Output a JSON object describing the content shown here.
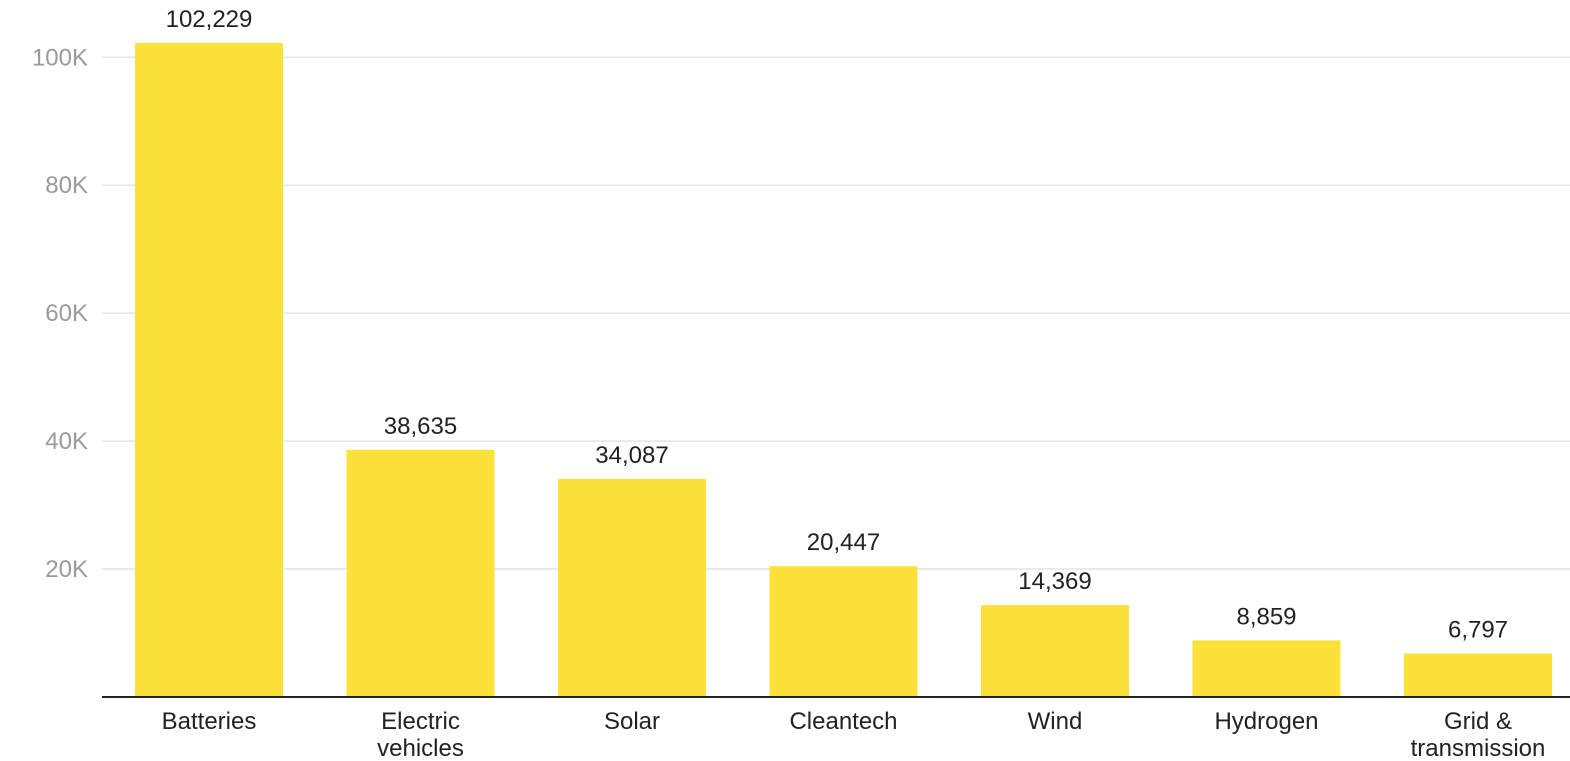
{
  "chart_data": {
    "type": "bar",
    "categories": [
      [
        "Batteries"
      ],
      [
        "Electric",
        "vehicles"
      ],
      [
        "Solar"
      ],
      [
        "Cleantech"
      ],
      [
        "Wind"
      ],
      [
        "Hydrogen"
      ],
      [
        "Grid &",
        "transmission"
      ]
    ],
    "values": [
      102229,
      38635,
      34087,
      20447,
      14369,
      8859,
      6797
    ],
    "value_labels": [
      "102,229",
      "38,635",
      "34,087",
      "20,447",
      "14,369",
      "8,859",
      "6,797"
    ],
    "yticks": [
      {
        "value": 20000,
        "label": "20K"
      },
      {
        "value": 40000,
        "label": "40K"
      },
      {
        "value": 60000,
        "label": "60K"
      },
      {
        "value": 80000,
        "label": "80K"
      },
      {
        "value": 100000,
        "label": "100K"
      }
    ],
    "ylim": [
      0,
      102229
    ],
    "grid": true,
    "bar_color": "#fde13b"
  }
}
